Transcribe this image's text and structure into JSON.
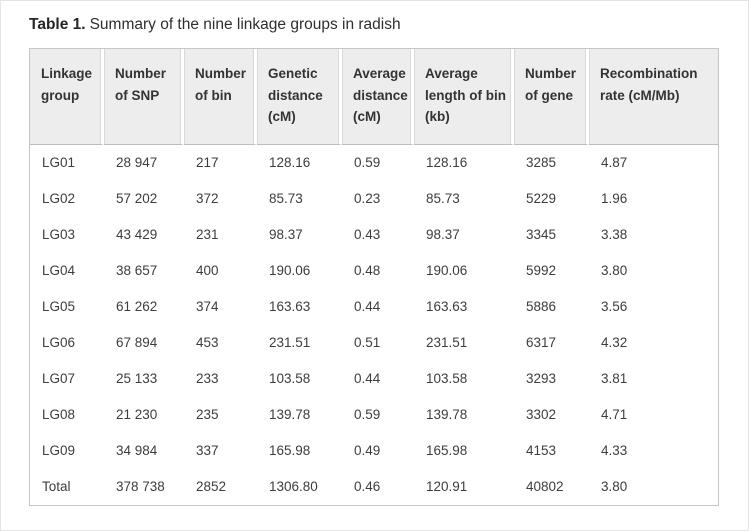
{
  "caption": {
    "label": "Table 1.",
    "text": "Summary of the nine linkage groups in radish"
  },
  "table": {
    "header_bg": "#ededed",
    "outer_border_color": "#c6c6c6",
    "header_rule_color": "#bcbcbc",
    "columns": [
      {
        "label": "Linkage group"
      },
      {
        "label": "Number of SNP"
      },
      {
        "label": "Number of bin"
      },
      {
        "label": "Genetic distance (cM)"
      },
      {
        "label": "Average distance (cM)"
      },
      {
        "label": "Average length of bin (kb)"
      },
      {
        "label": "Number of gene"
      },
      {
        "label": "Recombination rate (cM/Mb)"
      }
    ],
    "rows": [
      [
        "LG01",
        "28 947",
        "217",
        "128.16",
        "0.59",
        "128.16",
        "3285",
        "4.87"
      ],
      [
        "LG02",
        "57 202",
        "372",
        "85.73",
        "0.23",
        "85.73",
        "5229",
        "1.96"
      ],
      [
        "LG03",
        "43 429",
        "231",
        "98.37",
        "0.43",
        "98.37",
        "3345",
        "3.38"
      ],
      [
        "LG04",
        "38 657",
        "400",
        "190.06",
        "0.48",
        "190.06",
        "5992",
        "3.80"
      ],
      [
        "LG05",
        "61 262",
        "374",
        "163.63",
        "0.44",
        "163.63",
        "5886",
        "3.56"
      ],
      [
        "LG06",
        "67 894",
        "453",
        "231.51",
        "0.51",
        "231.51",
        "6317",
        "4.32"
      ],
      [
        "LG07",
        "25 133",
        "233",
        "103.58",
        "0.44",
        "103.58",
        "3293",
        "3.81"
      ],
      [
        "LG08",
        "21 230",
        "235",
        "139.78",
        "0.59",
        "139.78",
        "3302",
        "4.71"
      ],
      [
        "LG09",
        "34 984",
        "337",
        "165.98",
        "0.49",
        "165.98",
        "4153",
        "4.33"
      ],
      [
        "Total",
        "378 738",
        "2852",
        "1306.80",
        "0.46",
        "120.91",
        "40802",
        "3.80"
      ]
    ]
  }
}
